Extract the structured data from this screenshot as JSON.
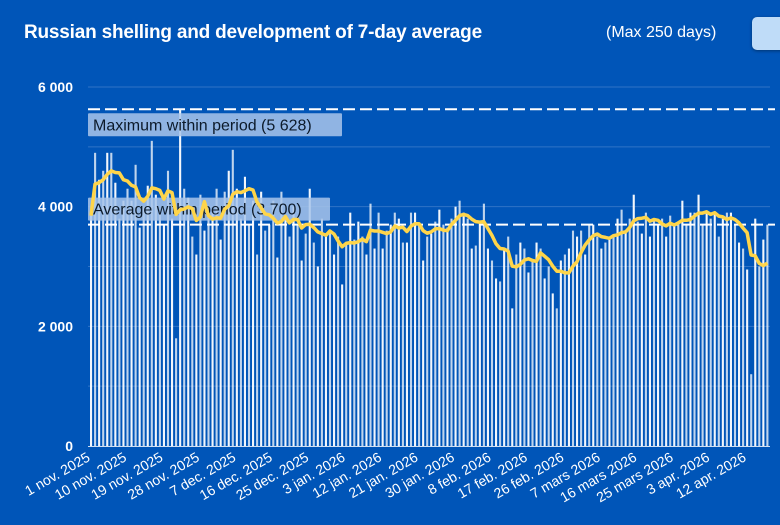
{
  "header": {
    "title": "Russian shelling and development of 7-day average",
    "range_note": "(Max 250 days)"
  },
  "colors": {
    "background": "#0055b8",
    "bars": "#ffffff",
    "average_line": "#ffd54a",
    "label_box": "#a9c6ea"
  },
  "chart_data": {
    "type": "bar",
    "x_start": "2025-11-01",
    "x_step": "1 day",
    "ylim": [
      0,
      6000
    ],
    "grid": true,
    "y_ticks": [
      {
        "value": 0,
        "label": "0"
      },
      {
        "value": 2000,
        "label": "2 000"
      },
      {
        "value": 4000,
        "label": "4 000"
      },
      {
        "value": 6000,
        "label": "6 000"
      }
    ],
    "x_ticks": [
      "1 nov. 2025",
      "10 nov. 2025",
      "19 nov. 2025",
      "28 nov. 2025",
      "7 dec. 2025",
      "16 dec. 2025",
      "25 dec. 2025",
      "3 jan. 2026",
      "12 jan. 2026",
      "21 jan. 2026",
      "30 jan. 2026",
      "8 feb. 2026",
      "17 feb. 2026",
      "26 feb. 2026",
      "7 mars 2026",
      "16 mars 2026",
      "25 mars 2026",
      "3 apr. 2026",
      "12 apr. 2026"
    ],
    "values": [
      3850,
      4900,
      4450,
      4600,
      4900,
      4900,
      4400,
      3800,
      4100,
      4300,
      4100,
      4700,
      3650,
      4000,
      4350,
      5100,
      4200,
      3900,
      3700,
      4600,
      3800,
      1800,
      5628,
      4300,
      4150,
      3500,
      3200,
      4200,
      3600,
      4000,
      3900,
      4300,
      3450,
      4250,
      4600,
      4950,
      4300,
      3800,
      4500,
      3700,
      4100,
      3200,
      4250,
      3600,
      3700,
      4100,
      3150,
      4250,
      3800,
      3500,
      4000,
      3700,
      3100,
      3550,
      4300,
      3400,
      3000,
      3800,
      3500,
      3600,
      3200,
      3500,
      2700,
      3400,
      3900,
      3450,
      3750,
      3500,
      3200,
      4050,
      3300,
      3900,
      3300,
      3600,
      3700,
      3900,
      3800,
      3400,
      3400,
      3900,
      3900,
      3700,
      3100,
      3500,
      3550,
      3750,
      3950,
      3700,
      3650,
      3800,
      4000,
      4100,
      3900,
      3800,
      3300,
      3350,
      3750,
      4050,
      3300,
      3100,
      2800,
      2750,
      3300,
      3500,
      2300,
      3200,
      3400,
      3300,
      2900,
      3100,
      3400,
      3300,
      2800,
      3000,
      2550,
      2300,
      3100,
      3200,
      3300,
      3600,
      3500,
      3600,
      3200,
      3700,
      3700,
      3500,
      3300,
      3400,
      3500,
      3500,
      3800,
      3950,
      3600,
      3800,
      4200,
      3750,
      3550,
      3900,
      3500,
      3800,
      3700,
      3800,
      3500,
      3850,
      3700,
      3750,
      4100,
      3700,
      3900,
      3900,
      4200,
      3700,
      3900,
      3800,
      3900,
      3500,
      3800,
      3900,
      3900,
      3700,
      3400,
      3300,
      2950,
      1200,
      3800,
      3000,
      3450,
      3700
    ],
    "moving_average": "7-day average",
    "reference_lines": [
      {
        "value": 5628,
        "label": "Maximum within period (5 628)"
      },
      {
        "value": 3700,
        "label": "Average within period (3 700)"
      }
    ]
  }
}
